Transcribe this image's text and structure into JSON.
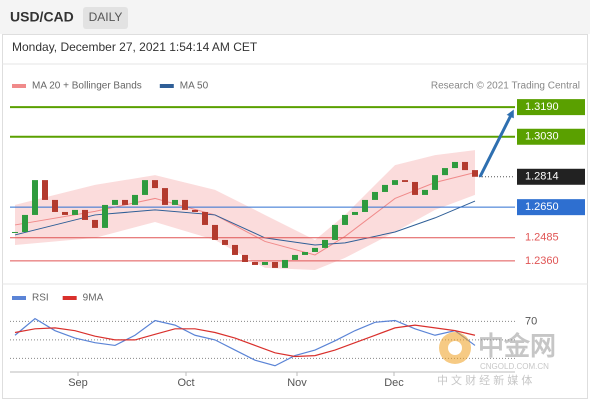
{
  "header": {
    "symbol": "USD/CAD",
    "timeframe": "DAILY",
    "timestamp": "Monday, December 27, 2021 1:54:14 AM CET"
  },
  "credit": "Research © 2021 Trading Central",
  "watermark": {
    "logo": "中金网",
    "site": "CNGOLD.COM.CN",
    "tagline": "中 文 财 经 新 媒 体"
  },
  "chart_data": [
    {
      "type": "candlestick",
      "candles": {
        "up_color": "#2e9b3e",
        "down_color": "#b33a2e",
        "close": [
          1.2516,
          1.2608,
          1.2796,
          1.2689,
          1.2624,
          1.2608,
          1.2635,
          1.2581,
          1.2538,
          1.2662,
          1.2689,
          1.2662,
          1.2716,
          1.2796,
          1.2753,
          1.2662,
          1.2689,
          1.2635,
          1.2624,
          1.2554,
          1.2473,
          1.2446,
          1.2392,
          1.2354,
          1.2338,
          1.2354,
          1.2322,
          1.2365,
          1.2392,
          1.2408,
          1.243,
          1.2473,
          1.2554,
          1.2608,
          1.2624,
          1.2689,
          1.2732,
          1.277,
          1.2796,
          1.2786,
          1.2716,
          1.2743,
          1.2823,
          1.2861,
          1.2894,
          1.285,
          1.2814
        ]
      },
      "series": [
        {
          "name": "MA 20 + Bollinger Bands",
          "color": "#f08a8a",
          "band_color": "#fbdcdc",
          "x": [
            0,
            8,
            14,
            20,
            25,
            30,
            33,
            38,
            42,
            46
          ],
          "values": [
            1.2554,
            1.2627,
            1.2697,
            1.2608,
            1.2465,
            1.2392,
            1.2492,
            1.2697,
            1.2783,
            1.2837
          ],
          "upper": [
            1.2662,
            1.277,
            1.2823,
            1.2743,
            1.2608,
            1.2473,
            1.2608,
            1.2877,
            1.2931,
            1.2958
          ],
          "lower": [
            1.2446,
            1.2484,
            1.257,
            1.2473,
            1.2322,
            1.2311,
            1.2376,
            1.2516,
            1.2635,
            1.2716
          ]
        },
        {
          "name": "MA 50",
          "color": "#2f5f97",
          "x": [
            0,
            8,
            14,
            20,
            25,
            30,
            33,
            38,
            42,
            46
          ],
          "values": [
            1.25,
            1.2608,
            1.2635,
            1.2608,
            1.2484,
            1.2446,
            1.2457,
            1.2516,
            1.2592,
            1.2683
          ]
        }
      ],
      "levels": [
        {
          "value": 1.319,
          "label": "1.3190",
          "color": "#5aa000",
          "kind": "box"
        },
        {
          "value": 1.303,
          "label": "1.3030",
          "color": "#5aa000",
          "kind": "box"
        },
        {
          "value": 1.2814,
          "label": "1.2814",
          "color": "#222222",
          "kind": "current"
        },
        {
          "value": 1.265,
          "label": "1.2650",
          "color": "#2e6fd0",
          "kind": "box"
        },
        {
          "value": 1.2485,
          "label": "1.2485",
          "color": "#e05555",
          "kind": "text"
        },
        {
          "value": 1.236,
          "label": "1.2360",
          "color": "#e05555",
          "kind": "text"
        }
      ],
      "xlim": [
        -0.3,
        46.7
      ],
      "xticks": [
        {
          "value": 6.3,
          "label": "Sep"
        },
        {
          "value": 17.1,
          "label": "Oct"
        },
        {
          "value": 28.2,
          "label": "Nov"
        },
        {
          "value": 37.9,
          "label": "Dec"
        }
      ],
      "ylim": [
        1.23,
        1.325
      ]
    },
    {
      "type": "line",
      "series": [
        {
          "name": "RSI",
          "color": "#5b84d6",
          "x": [
            0,
            2,
            4,
            6,
            8,
            10,
            12,
            14,
            16,
            18,
            20,
            22,
            24,
            26,
            28,
            30,
            32,
            34,
            36,
            38,
            40,
            42,
            44,
            46
          ],
          "values": [
            55,
            73,
            60,
            52,
            47,
            44,
            55,
            71,
            66,
            55,
            50,
            39,
            28,
            22,
            33,
            39,
            49,
            60,
            69,
            71,
            62,
            55,
            60,
            44
          ]
        },
        {
          "name": "9MA",
          "color": "#d9302c",
          "x": [
            0,
            2,
            4,
            6,
            8,
            10,
            12,
            14,
            16,
            18,
            20,
            22,
            24,
            26,
            28,
            30,
            32,
            34,
            36,
            38,
            40,
            42,
            44,
            46
          ],
          "values": [
            58,
            62,
            63,
            60,
            54,
            50,
            50,
            56,
            62,
            62,
            58,
            52,
            44,
            36,
            32,
            33,
            39,
            47,
            55,
            63,
            66,
            63,
            60,
            55
          ]
        }
      ],
      "xlim": [
        -0.3,
        46.7
      ],
      "ylim": [
        12,
        104
      ],
      "yticks": [
        70
      ],
      "grid_lines": [
        50,
        30
      ]
    }
  ]
}
